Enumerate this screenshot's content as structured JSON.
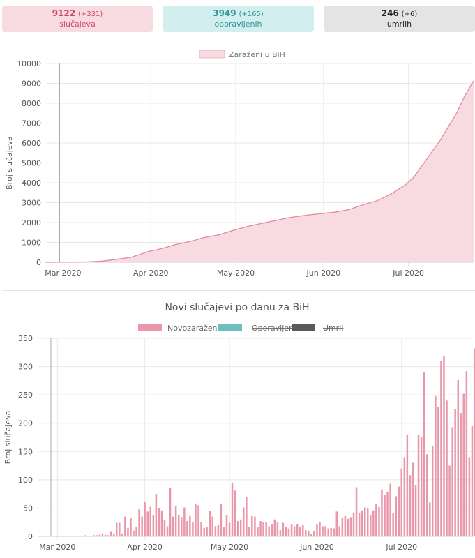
{
  "stats": {
    "cases": {
      "value": "9122",
      "delta": "(+331)",
      "label": "slučajeva",
      "color": "#c9476a",
      "bg": "#f8dbe1"
    },
    "recovered": {
      "value": "3949",
      "delta": "(+165)",
      "label": "oporavljenih",
      "color": "#2e9496",
      "bg": "#d3eeee"
    },
    "deaths": {
      "value": "246",
      "delta": "(+6)",
      "label": "umrlih",
      "color": "#222222",
      "bg": "#e4e4e4"
    }
  },
  "chart_data": [
    {
      "type": "area",
      "title": "",
      "ylabel": "Broj slučajeva",
      "xlabel": "",
      "legend": {
        "position": "top",
        "entries": [
          {
            "name": "Zaraženi u BiH",
            "color": "#f8dbe1",
            "border": "#e38a9f"
          }
        ]
      },
      "x_ticks": [
        "Mar 2020",
        "Apr 2020",
        "May 2020",
        "Jun 2020",
        "Jul 2020"
      ],
      "ylim": [
        0,
        10000
      ],
      "y_ticks": [
        0,
        1000,
        2000,
        3000,
        4000,
        5000,
        6000,
        7000,
        8000,
        9000,
        10000
      ],
      "grid": true,
      "x": [
        "2020-02-24",
        "2020-03-05",
        "2020-03-10",
        "2020-03-15",
        "2020-03-20",
        "2020-03-25",
        "2020-03-31",
        "2020-04-05",
        "2020-04-10",
        "2020-04-15",
        "2020-04-20",
        "2020-04-25",
        "2020-04-30",
        "2020-05-05",
        "2020-05-10",
        "2020-05-15",
        "2020-05-20",
        "2020-05-25",
        "2020-05-31",
        "2020-06-05",
        "2020-06-10",
        "2020-06-15",
        "2020-06-20",
        "2020-06-25",
        "2020-06-30",
        "2020-07-03",
        "2020-07-06",
        "2020-07-09",
        "2020-07-12",
        "2020-07-15",
        "2020-07-18",
        "2020-07-21",
        "2020-07-24"
      ],
      "values": [
        0,
        10,
        20,
        60,
        150,
        250,
        530,
        700,
        900,
        1050,
        1250,
        1380,
        1600,
        1800,
        1950,
        2100,
        2250,
        2350,
        2450,
        2520,
        2650,
        2900,
        3100,
        3450,
        3900,
        4300,
        4900,
        5500,
        6100,
        6800,
        7500,
        8400,
        9122
      ]
    },
    {
      "type": "bar",
      "title": "Novi slučajevi po danu za BiH",
      "ylabel": "Broj slučajeva",
      "xlabel": "",
      "legend": {
        "position": "top",
        "entries": [
          {
            "name": "Novozaraženi",
            "color": "#e898aa",
            "hidden": false
          },
          {
            "name": "Oporavljeni",
            "color": "#6dbfbf",
            "hidden": true
          },
          {
            "name": "Umrli",
            "color": "#5a5a5a",
            "hidden": true
          }
        ]
      },
      "x_ticks": [
        "Mar 2020",
        "Apr 2020",
        "May 2020",
        "Jun 2020",
        "Jul 2020"
      ],
      "ylim": [
        0,
        350
      ],
      "y_ticks": [
        0,
        50,
        100,
        150,
        200,
        250,
        300,
        350
      ],
      "grid": true,
      "start_date": "2020-02-24",
      "values": [
        0,
        0,
        0,
        0,
        0,
        0,
        0,
        0,
        0,
        0,
        0,
        0,
        0,
        0,
        1,
        0,
        2,
        0,
        1,
        2,
        2,
        3,
        5,
        3,
        2,
        8,
        5,
        24,
        24,
        5,
        35,
        15,
        32,
        10,
        17,
        48,
        35,
        61,
        44,
        52,
        38,
        75,
        50,
        46,
        29,
        18,
        86,
        35,
        54,
        37,
        34,
        51,
        27,
        36,
        26,
        58,
        55,
        26,
        15,
        16,
        45,
        35,
        18,
        20,
        57,
        16,
        38,
        24,
        95,
        81,
        27,
        30,
        51,
        70,
        16,
        36,
        35,
        17,
        27,
        25,
        25,
        18,
        22,
        30,
        25,
        11,
        24,
        17,
        14,
        22,
        18,
        22,
        17,
        21,
        11,
        10,
        4,
        10,
        22,
        26,
        18,
        18,
        14,
        15,
        14,
        44,
        18,
        33,
        36,
        31,
        34,
        42,
        87,
        42,
        46,
        51,
        50,
        38,
        46,
        57,
        52,
        83,
        73,
        79,
        93,
        41,
        71,
        88,
        120,
        140,
        180,
        108,
        130,
        90,
        180,
        175,
        290,
        145,
        60,
        160,
        248,
        228,
        310,
        318,
        240,
        125,
        193,
        225,
        276,
        218,
        252,
        292,
        140,
        195,
        332
      ]
    }
  ]
}
